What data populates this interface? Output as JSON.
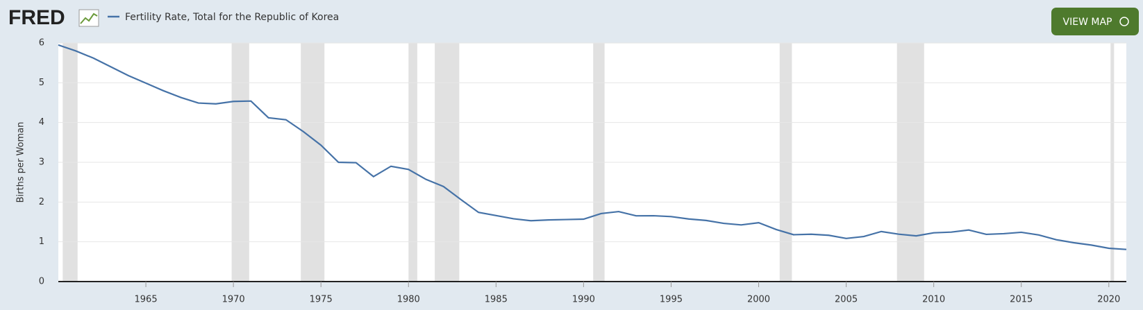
{
  "logo": "FRED",
  "button": "VIEW MAP",
  "chart_data": {
    "type": "line",
    "y_label": "Births per Woman",
    "x": [
      1960,
      1961,
      1962,
      1963,
      1964,
      1965,
      1966,
      1967,
      1968,
      1969,
      1970,
      1971,
      1972,
      1973,
      1974,
      1975,
      1976,
      1977,
      1978,
      1979,
      1980,
      1981,
      1982,
      1983,
      1984,
      1985,
      1986,
      1987,
      1988,
      1989,
      1990,
      1991,
      1992,
      1993,
      1994,
      1995,
      1996,
      1997,
      1998,
      1999,
      2000,
      2001,
      2002,
      2003,
      2004,
      2005,
      2006,
      2007,
      2008,
      2009,
      2010,
      2011,
      2012,
      2013,
      2014,
      2015,
      2016,
      2017,
      2018,
      2019,
      2020,
      2021
    ],
    "series": [
      {
        "name": "Fertility Rate, Total for the Republic of Korea",
        "color": "#4572a7",
        "values": [
          5.95,
          5.8,
          5.62,
          5.4,
          5.18,
          4.99,
          4.8,
          4.63,
          4.49,
          4.47,
          4.53,
          4.54,
          4.12,
          4.07,
          3.77,
          3.43,
          3.0,
          2.99,
          2.64,
          2.9,
          2.82,
          2.57,
          2.39,
          2.06,
          1.74,
          1.66,
          1.58,
          1.53,
          1.55,
          1.56,
          1.57,
          1.71,
          1.76,
          1.654,
          1.656,
          1.634,
          1.574,
          1.537,
          1.464,
          1.425,
          1.48,
          1.309,
          1.178,
          1.191,
          1.164,
          1.085,
          1.132,
          1.259,
          1.192,
          1.149,
          1.226,
          1.244,
          1.297,
          1.187,
          1.205,
          1.239,
          1.172,
          1.052,
          0.977,
          0.918,
          0.837,
          0.808
        ]
      }
    ],
    "recessions": [
      [
        1960.25,
        1961.1
      ],
      [
        1969.9,
        1970.9
      ],
      [
        1973.85,
        1975.2
      ],
      [
        1980.0,
        1980.5
      ],
      [
        1981.5,
        1982.9
      ],
      [
        1990.55,
        1991.2
      ],
      [
        2001.2,
        2001.9
      ],
      [
        2007.9,
        2009.45
      ],
      [
        2020.1,
        2020.3
      ]
    ],
    "xlim": [
      1960,
      2021
    ],
    "ylim": [
      0,
      6
    ],
    "xticks": [
      1965,
      1970,
      1975,
      1980,
      1985,
      1990,
      1995,
      2000,
      2005,
      2010,
      2015,
      2020
    ],
    "yticks": [
      0,
      1,
      2,
      3,
      4,
      5,
      6
    ],
    "grid": true
  }
}
